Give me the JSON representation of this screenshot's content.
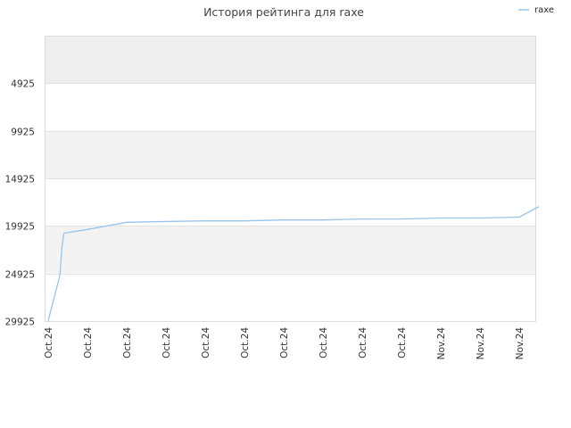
{
  "chart_data": {
    "type": "line",
    "title": "История рейтинга для raxe",
    "xlabel": "",
    "ylabel": "",
    "y_inverted": true,
    "ylim": [
      29925,
      -75
    ],
    "yticks": [
      4925,
      9925,
      14925,
      19925,
      24925,
      29925
    ],
    "y_tick_labels": [
      "4925",
      "9925",
      "14925",
      "19925",
      "24925",
      "29925"
    ],
    "x_tick_labels": [
      "Oct.24",
      "Oct.24",
      "Oct.24",
      "Oct.24",
      "Oct.24",
      "Oct.24",
      "Oct.24",
      "Oct.24",
      "Oct.24",
      "Oct.24",
      "Nov.24",
      "Nov.24",
      "Nov.24"
    ],
    "grid": true,
    "legend": {
      "position": "top-right"
    },
    "series": [
      {
        "name": "raxe",
        "color": "#99c4ec",
        "x": [
          0.0,
          0.3,
          0.35,
          0.4,
          1.0,
          2.0,
          2.5,
          4.0,
          5.0,
          6.0,
          7.0,
          8.0,
          9.0,
          10.0,
          11.0,
          12.0,
          12.5
        ],
        "y": [
          29900,
          25100,
          22200,
          20700,
          20300,
          19550,
          19500,
          19400,
          19400,
          19300,
          19300,
          19200,
          19200,
          19100,
          19100,
          19000,
          17900
        ]
      }
    ]
  }
}
